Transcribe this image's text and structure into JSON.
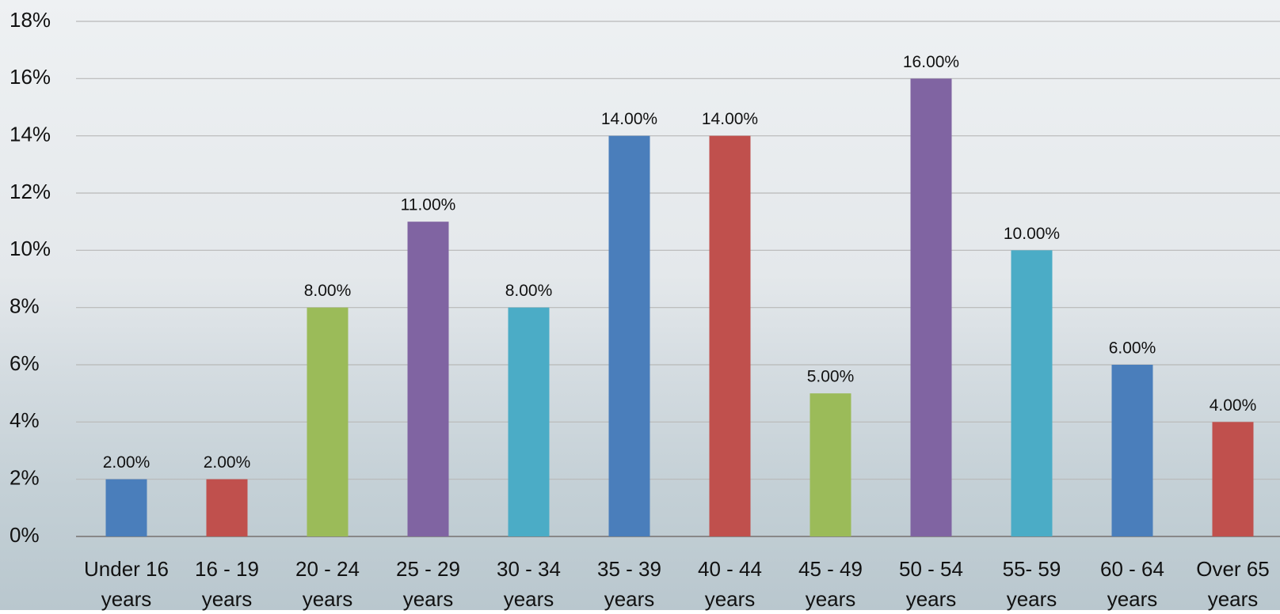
{
  "chart_data": {
    "type": "bar",
    "categories": [
      "Under 16 years",
      "16 - 19 years",
      "20 - 24 years",
      "25 - 29 years",
      "30 - 34 years",
      "35 - 39 years",
      "40 - 44 years",
      "45 - 49 years",
      "50 - 54 years",
      "55- 59 years",
      "60 - 64 years",
      "Over 65 years"
    ],
    "values": [
      2,
      2,
      8,
      11,
      8,
      14,
      14,
      5,
      16,
      10,
      6,
      4
    ],
    "value_labels": [
      "2.00%",
      "2.00%",
      "8.00%",
      "11.00%",
      "8.00%",
      "14.00%",
      "14.00%",
      "5.00%",
      "16.00%",
      "10.00%",
      "6.00%",
      "4.00%"
    ],
    "colors": [
      "#4a7ebb",
      "#c0504d",
      "#9bbb59",
      "#8064a2",
      "#4bacc6",
      "#4a7ebb",
      "#c0504d",
      "#9bbb59",
      "#8064a2",
      "#4bacc6",
      "#4a7ebb",
      "#c0504d"
    ],
    "ylim": [
      0,
      18
    ],
    "yticks": [
      {
        "value": 0,
        "label": "0%"
      },
      {
        "value": 2,
        "label": "2%"
      },
      {
        "value": 4,
        "label": "4%"
      },
      {
        "value": 6,
        "label": "6%"
      },
      {
        "value": 8,
        "label": "8%"
      },
      {
        "value": 10,
        "label": "10%"
      },
      {
        "value": 12,
        "label": "12%"
      },
      {
        "value": 14,
        "label": "14%"
      },
      {
        "value": 16,
        "label": "16%"
      },
      {
        "value": 18,
        "label": "18%"
      }
    ],
    "grid": true
  }
}
